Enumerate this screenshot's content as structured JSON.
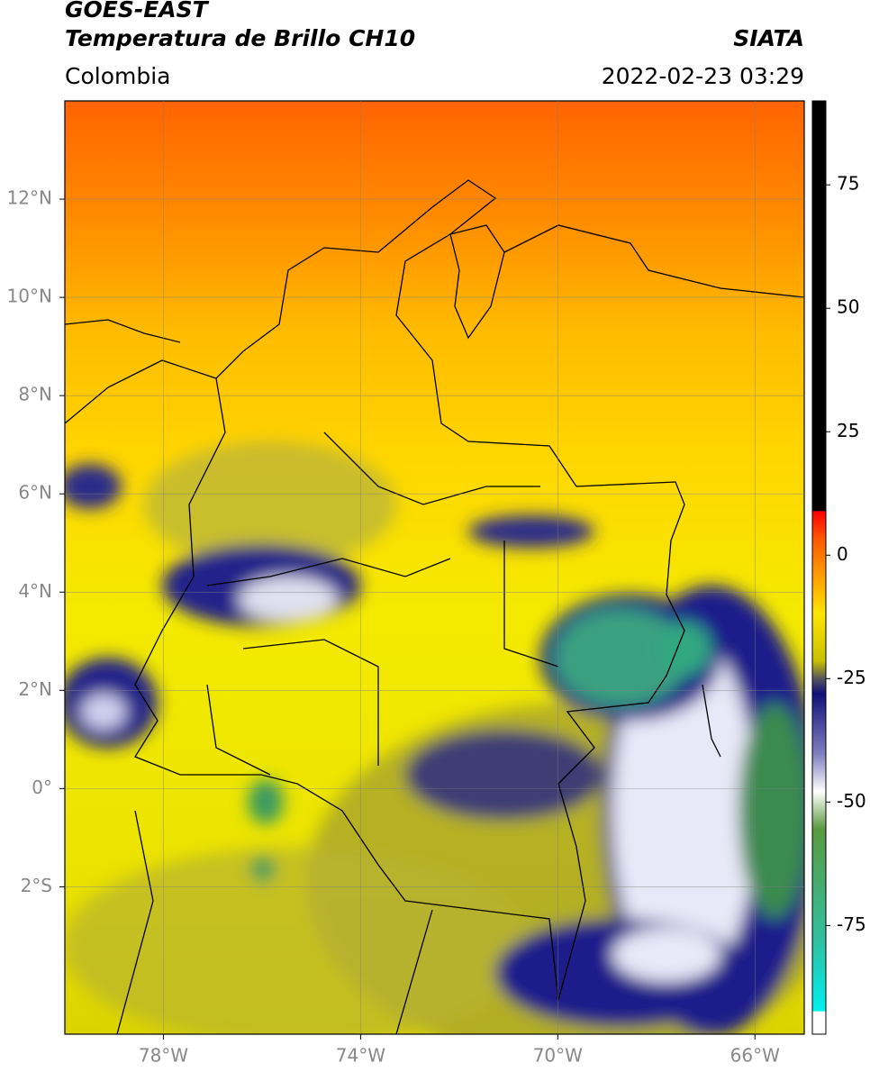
{
  "header": {
    "title": "GOES-EAST",
    "subtitle": "Temperatura de Brillo CH10",
    "source": "SIATA",
    "region": "Colombia",
    "timestamp": "2022-02-23 03:29"
  },
  "chart_data": {
    "type": "map",
    "xlim": [
      -80,
      -65
    ],
    "ylim": [
      -5,
      14
    ],
    "xticks": [
      {
        "value": -78,
        "label": "78°W"
      },
      {
        "value": -74,
        "label": "74°W"
      },
      {
        "value": -70,
        "label": "70°W"
      },
      {
        "value": -66,
        "label": "66°W"
      }
    ],
    "yticks": [
      {
        "value": 12,
        "label": "12°N"
      },
      {
        "value": 10,
        "label": "10°N"
      },
      {
        "value": 8,
        "label": "8°N"
      },
      {
        "value": 6,
        "label": "6°N"
      },
      {
        "value": 4,
        "label": "4°N"
      },
      {
        "value": 2,
        "label": "2°N"
      },
      {
        "value": 0,
        "label": "0°"
      },
      {
        "value": -2,
        "label": "2°S"
      }
    ],
    "grid": true,
    "colorbar": {
      "lim": [
        -97,
        92
      ],
      "ticks": [
        75,
        50,
        25,
        0,
        -25,
        -50,
        -75
      ]
    }
  }
}
